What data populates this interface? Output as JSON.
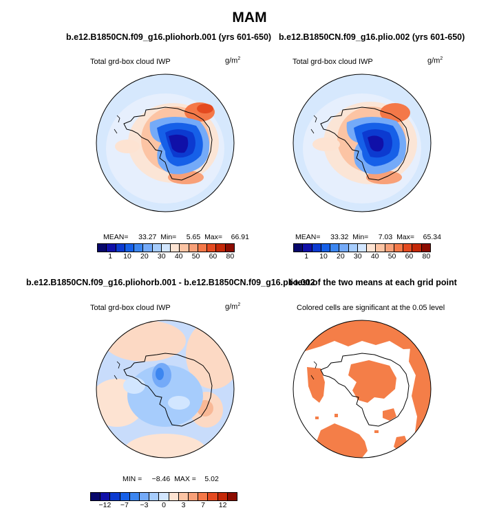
{
  "title": "MAM",
  "panels": [
    {
      "id": "top-left",
      "heading": "b.e12.B1850CN.f09_g16.pliohorb.001 (yrs 601-650)",
      "variable": "Total grd-box cloud IWP",
      "units": "g/m",
      "units_exp": "2",
      "stats": {
        "mean_label": "MEAN=",
        "mean": "33.27",
        "min_label": "Min=",
        "min": "5.65",
        "max_label": "Max=",
        "max": "66.91"
      },
      "colorbar": {
        "labels": [
          "1",
          "10",
          "20",
          "30",
          "40",
          "50",
          "60",
          "80"
        ]
      }
    },
    {
      "id": "top-right",
      "heading": "b.e12.B1850CN.f09_g16.plio.002 (yrs 601-650)",
      "variable": "Total grd-box cloud IWP",
      "units": "g/m",
      "units_exp": "2",
      "stats": {
        "mean_label": "MEAN=",
        "mean": "33.32",
        "min_label": "Min=",
        "min": "7.03",
        "max_label": "Max=",
        "max": "65.34"
      },
      "colorbar": {
        "labels": [
          "1",
          "10",
          "20",
          "30",
          "40",
          "50",
          "60",
          "80"
        ]
      }
    },
    {
      "id": "bottom-left",
      "heading": "b.e12.B1850CN.f09_g16.pliohorb.001 - b.e12.B1850CN.f09_g16.plio.002",
      "variable": "Total grd-box cloud IWP",
      "units": "g/m",
      "units_exp": "2",
      "stats": {
        "min_label": "MIN =",
        "min": "−8.46",
        "max_label": "MAX =",
        "max": "5.02"
      },
      "colorbar": {
        "labels": [
          "−12",
          "−7",
          "−3",
          "0",
          "3",
          "7",
          "12"
        ]
      }
    },
    {
      "id": "bottom-right",
      "heading": "t-test of the two means at each grid point",
      "variable": "Colored cells are significant at the 0.05 level"
    }
  ],
  "colors": {
    "seq": [
      "#08086b",
      "#1010a8",
      "#0c3ad0",
      "#1660e8",
      "#3c86f0",
      "#74aaf8",
      "#a6ccfc",
      "#d2e6ff",
      "#fde3d2",
      "#fcc4a4",
      "#f8a078",
      "#f47848",
      "#e44a20",
      "#c42808",
      "#8c0c00"
    ],
    "div": [
      "#08086b",
      "#1010a8",
      "#0c3ad0",
      "#1660e8",
      "#3c86f0",
      "#74aaf8",
      "#a6ccfc",
      "#d2e6ff",
      "#fde3d2",
      "#fcc4a4",
      "#f8a078",
      "#f47848",
      "#e44a20",
      "#c42808",
      "#8c0c00"
    ],
    "ocean_top": "#d6e8fd",
    "ocean_diff": "#c8dcfb",
    "significant": "#f47e48"
  }
}
